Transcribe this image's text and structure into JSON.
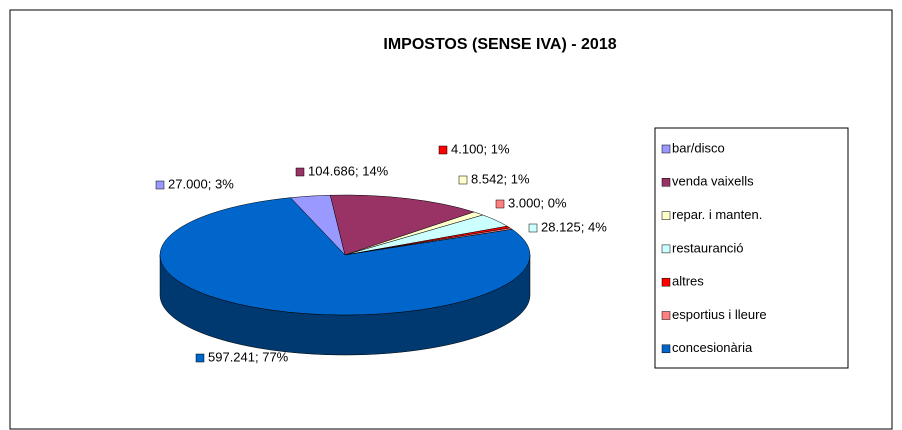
{
  "chart_data": {
    "type": "pie3d",
    "title": "IMPOSTOS (SENSE IVA) - 2018",
    "categories": [
      "bar/disco",
      "venda vaixells",
      "repar. i manten.",
      "restauranció",
      "altres",
      "esportius i lleure",
      "concesionària"
    ],
    "values": [
      27000,
      104686,
      8542,
      28125,
      4100,
      3000,
      597241
    ],
    "value_labels": [
      "27.000; 3%",
      "104.686; 14%",
      "8.542; 1%",
      "28.125; 4%",
      "4.100; 1%",
      "3.000; 0%",
      "597.241; 77%"
    ],
    "colors": [
      "#9999ff",
      "#993366",
      "#ffffcc",
      "#ccffff",
      "#ff0000",
      "#ff8080",
      "#0066cc"
    ],
    "legend": "right"
  }
}
